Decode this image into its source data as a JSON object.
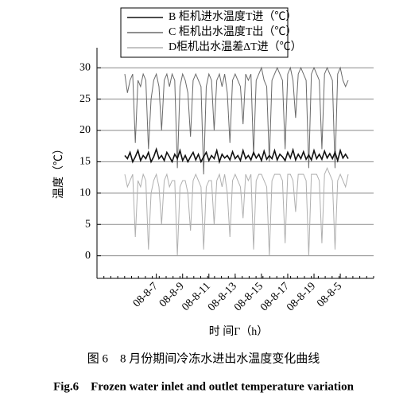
{
  "chart_data": {
    "type": "line",
    "y_label": "温度（℃）",
    "x_label": "时 间Γ（h）",
    "caption": "图 6　8 月份期间冷冻水进出水温度变化曲线",
    "caption_en": "Fig.6　Frozen water inlet and outlet temperature variation",
    "categories": [
      null,
      null,
      null,
      null,
      null,
      null,
      null,
      null,
      null,
      null,
      null,
      null,
      "08-8-7",
      null,
      null,
      null,
      null,
      null,
      null,
      null,
      null,
      null,
      "08-8-9",
      null,
      null,
      null,
      null,
      null,
      null,
      null,
      null,
      null,
      "08-8-11",
      null,
      null,
      null,
      null,
      null,
      null,
      null,
      null,
      null,
      "08-8-13",
      null,
      null,
      null,
      null,
      null,
      null,
      null,
      null,
      null,
      "08-8-15",
      null,
      null,
      null,
      null,
      null,
      null,
      null,
      null,
      null,
      "08-8-17",
      null,
      null,
      null,
      null,
      null,
      null,
      null,
      null,
      null,
      "08-8-19",
      null,
      null,
      null,
      null,
      null,
      null,
      null,
      null,
      null,
      "08-8-5",
      null,
      null,
      null
    ],
    "series": [
      {
        "name": "B 柜机进水温度T进（℃）",
        "color": "#111111",
        "values": [
          16,
          15.5,
          16.5,
          15,
          15.8,
          16.8,
          15.2,
          16,
          15.5,
          16.5,
          15,
          15.8,
          17,
          15.5,
          16,
          15.2,
          16.5,
          15.8,
          15,
          16.2,
          15.5,
          16.8,
          15.2,
          16,
          15,
          15.8,
          16.5,
          15.3,
          16.2,
          15,
          15.8,
          16.5,
          15.2,
          16,
          15.5,
          16.8,
          15,
          16.2,
          15.6,
          16,
          15.3,
          16.6,
          15.5,
          16,
          15.2,
          16.8,
          15.5,
          16,
          15.3,
          16.5,
          15.6,
          16.2,
          15.2,
          16.7,
          15.4,
          16,
          15.5,
          16.8,
          15.3,
          16.2,
          15.8,
          15.2,
          16.5,
          15.6,
          16.9,
          15.3,
          16.2,
          15.5,
          16.6,
          15.4,
          16.1,
          15.3,
          16.8,
          15.5,
          16.2,
          15.4,
          16.7,
          15.6,
          16.3,
          15.5,
          16.5,
          15.2,
          16.8,
          15.6,
          16.2,
          15.5
        ]
      },
      {
        "name": "C 柜机出水温度T出（℃）",
        "color": "#6a6a6a",
        "values": [
          29,
          26,
          28,
          29,
          18,
          28,
          27,
          29,
          28,
          17,
          25,
          28,
          29,
          27,
          20,
          28,
          29,
          27,
          29,
          28,
          14,
          27,
          29,
          28,
          26,
          19,
          28,
          29,
          28,
          27,
          13,
          27,
          29,
          28,
          20,
          28,
          29,
          27,
          29,
          26,
          18,
          28,
          29,
          28,
          27,
          21,
          29,
          28,
          29,
          16,
          28,
          29,
          30,
          28,
          27,
          15,
          28,
          29,
          30,
          29,
          28,
          17,
          29,
          30,
          28,
          22,
          29,
          30,
          29,
          28,
          14,
          29,
          30,
          29,
          28,
          17,
          29,
          30,
          29,
          28,
          14,
          29,
          30,
          28,
          27,
          28
        ]
      },
      {
        "name": "D柜机出水温差ΔT进（℃）",
        "color": "#b0b0b0",
        "values": [
          13,
          11,
          12,
          13,
          3,
          12,
          11,
          13,
          12,
          1,
          10,
          12,
          13,
          11,
          5,
          12,
          13,
          11,
          12,
          12,
          0,
          11,
          12,
          12,
          10,
          4,
          12,
          13,
          12,
          11,
          1,
          11,
          12,
          12,
          5,
          12,
          13,
          11,
          13,
          10,
          3,
          12,
          13,
          12,
          11,
          6,
          13,
          12,
          13,
          1,
          12,
          13,
          13,
          12,
          11,
          0,
          12,
          13,
          13,
          13,
          12,
          2,
          13,
          13,
          12,
          7,
          13,
          13,
          13,
          12,
          0,
          13,
          13,
          13,
          12,
          2,
          13,
          14,
          13,
          12,
          1,
          12,
          13,
          12,
          11,
          13
        ]
      }
    ],
    "ylim": [
      -3.6,
      33.2
    ],
    "yticks": [
      0,
      5,
      10,
      15,
      20,
      25,
      30
    ],
    "grid": true
  }
}
